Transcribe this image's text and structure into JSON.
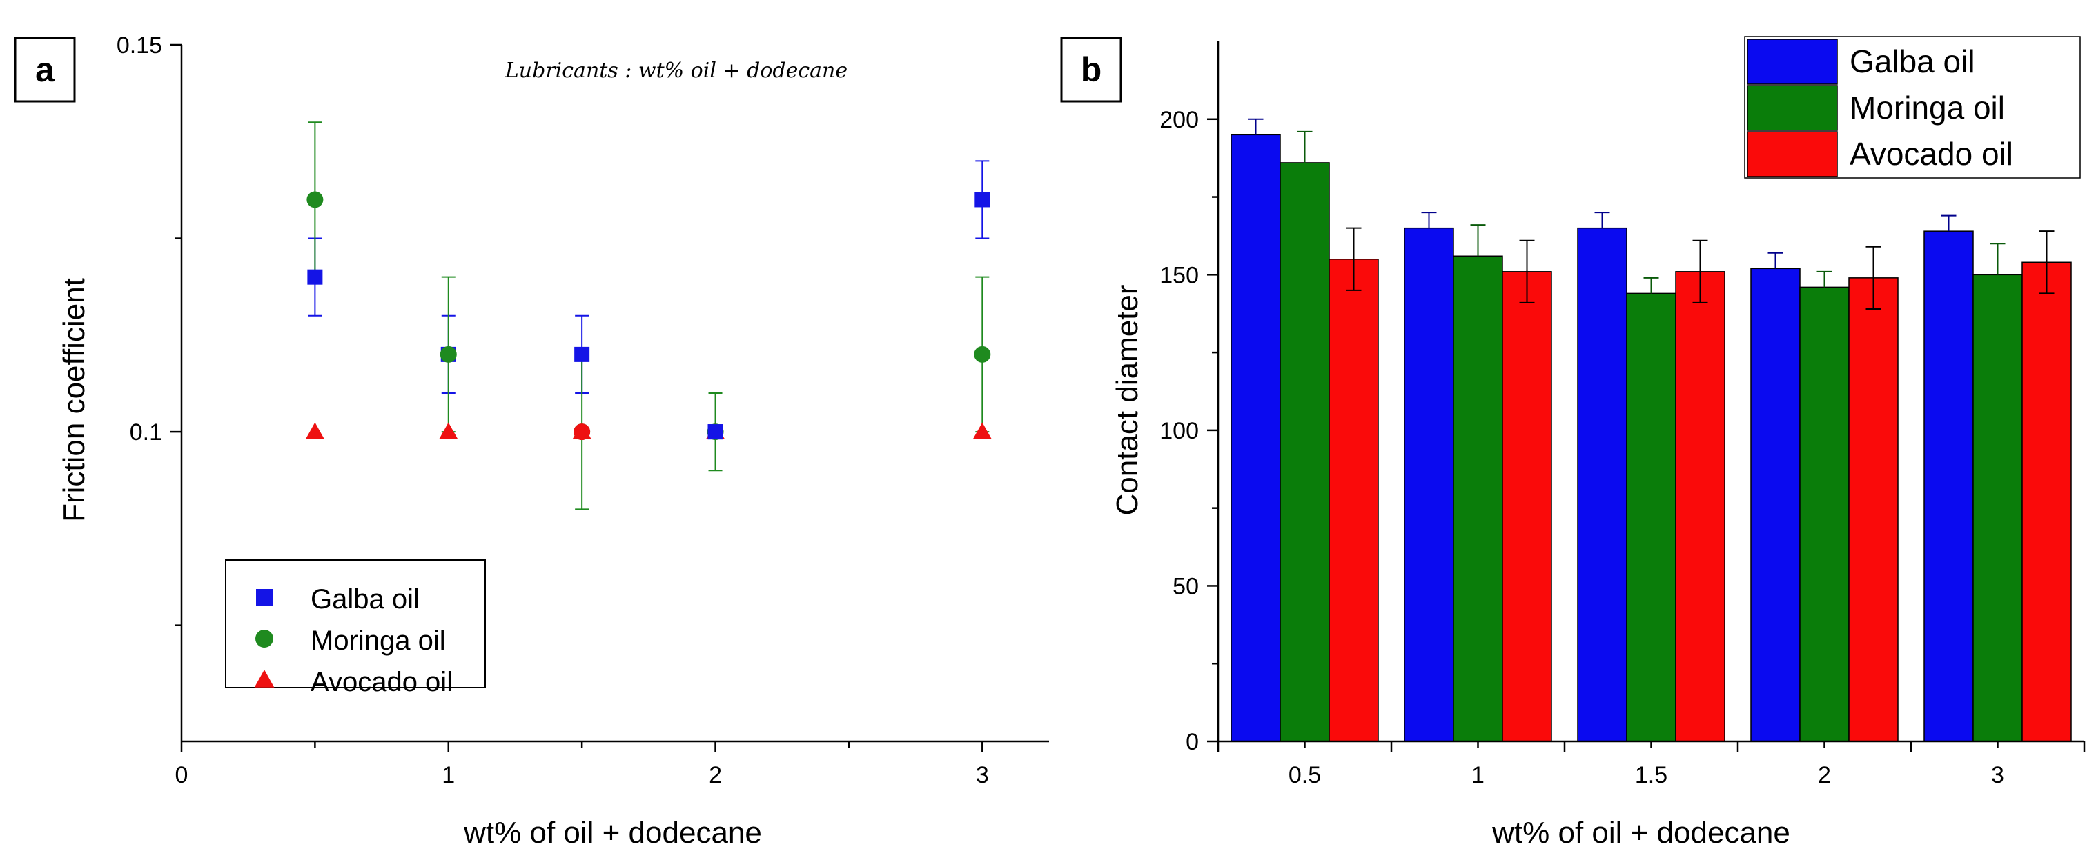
{
  "chart_data": [
    {
      "panel": "a",
      "type": "scatter",
      "annotation": "Lubricants : wt% oil + dodecane",
      "xlabel": "wt% of oil + dodecane",
      "ylabel": "Friction coefficient",
      "xlim": [
        0,
        3.25
      ],
      "ylim": [
        0.06,
        0.15
      ],
      "x_ticks": [
        0,
        1,
        2,
        3
      ],
      "x_tick_labels": [
        "0",
        "1",
        "2",
        "3"
      ],
      "y_ticks": [
        0.1,
        0.15
      ],
      "y_tick_labels": [
        "0.1",
        "0.15"
      ],
      "legend_position": "bottom-left",
      "series": [
        {
          "name": "Galba oil",
          "marker": "square",
          "color": "#1414e6",
          "x": [
            0.5,
            1,
            1.5,
            2,
            3
          ],
          "y": [
            0.12,
            0.11,
            0.11,
            0.1,
            0.13
          ],
          "err": [
            0.005,
            0.005,
            0.005,
            0,
            0.005
          ]
        },
        {
          "name": "Moringa oil",
          "marker": "circle",
          "color": "#1f8a1f",
          "x": [
            0.5,
            1,
            1.5,
            2,
            3
          ],
          "y": [
            0.13,
            0.11,
            0.1,
            0.1,
            0.11
          ],
          "err": [
            0.01,
            0.01,
            0.01,
            0.005,
            0.01
          ]
        },
        {
          "name": "Avocado oil",
          "marker": "triangle",
          "color": "#ee1111",
          "x": [
            0.5,
            1,
            1.5,
            2,
            3
          ],
          "y": [
            0.1,
            0.1,
            0.1,
            0.1,
            0.1
          ],
          "err": [
            0,
            0,
            0,
            0,
            0
          ]
        }
      ]
    },
    {
      "panel": "b",
      "type": "bar",
      "xlabel": "wt% of oil + dodecane",
      "ylabel": "Contact diameter",
      "categories": [
        "0.5",
        "1",
        "1.5",
        "2",
        "3"
      ],
      "ylim": [
        0,
        225
      ],
      "y_ticks": [
        0,
        50,
        100,
        150,
        200
      ],
      "y_tick_labels": [
        "0",
        "50",
        "100",
        "150",
        "200"
      ],
      "legend_position": "top-right",
      "series": [
        {
          "name": "Galba oil",
          "color": "#0a0af0",
          "values": [
            195,
            165,
            165,
            152,
            164
          ],
          "err": [
            5,
            5,
            5,
            5,
            5
          ]
        },
        {
          "name": "Moringa oil",
          "color": "#0a7d0a",
          "values": [
            186,
            156,
            144,
            146,
            150
          ],
          "err": [
            10,
            10,
            5,
            5,
            10
          ]
        },
        {
          "name": "Avocado oil",
          "color": "#fa0a0a",
          "values": [
            155,
            151,
            151,
            149,
            154
          ],
          "err": [
            10,
            10,
            10,
            10,
            10
          ]
        }
      ]
    }
  ]
}
